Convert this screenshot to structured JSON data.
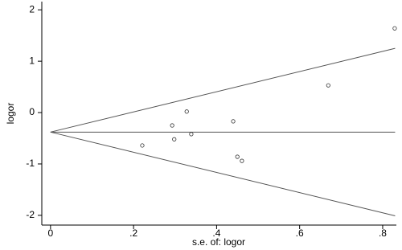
{
  "chart_data": {
    "type": "scatter",
    "xlabel": "s.e. of: logor",
    "ylabel": "logor",
    "x": [
      0.221,
      0.293,
      0.298,
      0.328,
      0.339,
      0.44,
      0.45,
      0.461,
      0.669,
      0.829
    ],
    "values": [
      -0.64,
      -0.25,
      -0.52,
      0.02,
      -0.42,
      -0.17,
      -0.86,
      -0.94,
      0.53,
      1.64
    ],
    "color": "#333333",
    "lines": [
      {
        "x": [
          0,
          0.83
        ],
        "y": [
          -0.38,
          1.25
        ]
      },
      {
        "x": [
          0,
          0.83
        ],
        "y": [
          -0.38,
          -0.38
        ]
      },
      {
        "x": [
          0,
          0.83
        ],
        "y": [
          -0.38,
          -2.01
        ]
      }
    ],
    "xlim": [
      -0.021,
      0.833
    ],
    "ylim": [
      -2.19,
      2.16
    ],
    "xticks": [
      0,
      {
        "value": 0.2,
        "label": ".2"
      },
      {
        "value": 0.4,
        "label": ".4"
      },
      {
        "value": 0.6,
        "label": ".6"
      },
      {
        "value": 0.8,
        "label": ".8"
      }
    ],
    "yticks": [
      -2,
      -1,
      0,
      1,
      2
    ]
  }
}
